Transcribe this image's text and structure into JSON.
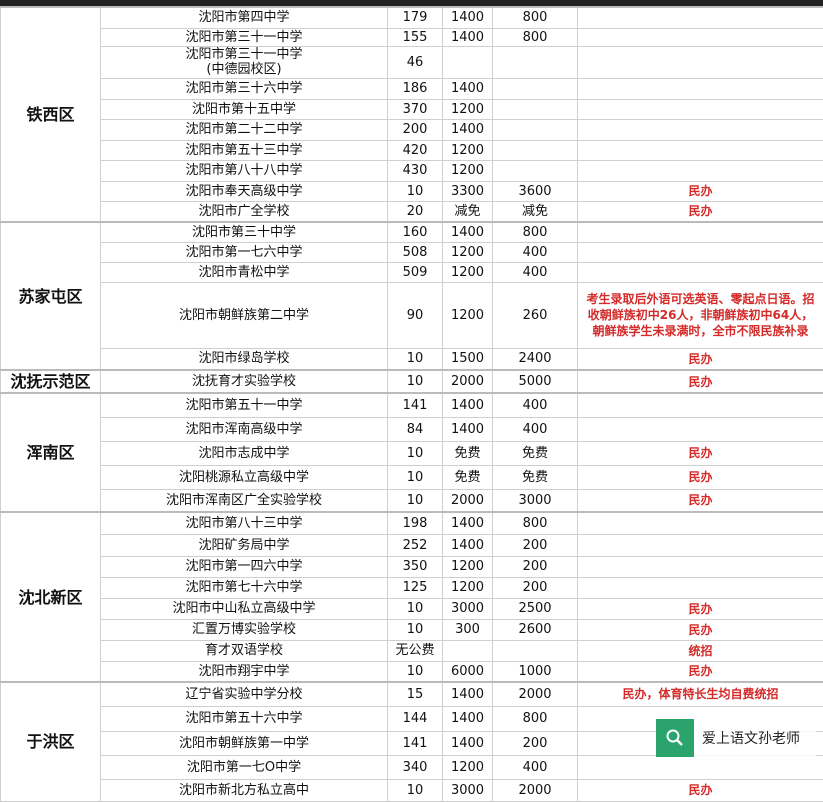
{
  "districts": [
    {
      "name": "铁西区",
      "rows": [
        [
          "沈阳市第四中学",
          "179",
          "1400",
          "800",
          ""
        ],
        [
          "沈阳市第三十一中学",
          "155",
          "1400",
          "800",
          ""
        ],
        [
          "沈阳市第三十一中学\n(中德园校区)",
          "46",
          "",
          "",
          ""
        ],
        [
          "沈阳市第三十六中学",
          "186",
          "1400",
          "",
          ""
        ],
        [
          "沈阳市第十五中学",
          "370",
          "1200",
          "",
          ""
        ],
        [
          "沈阳市第二十二中学",
          "200",
          "1400",
          "",
          ""
        ],
        [
          "沈阳市第五十三中学",
          "420",
          "1200",
          "",
          ""
        ],
        [
          "沈阳市第八十八中学",
          "430",
          "1200",
          "",
          ""
        ],
        [
          "沈阳市奉天高级中学",
          "10",
          "3300",
          "3600",
          "民办"
        ],
        [
          "沈阳市广全学校",
          "20",
          "减免",
          "减免",
          "民办"
        ]
      ]
    },
    {
      "name": "苏家屯区",
      "rows": [
        [
          "沈阳市第三十中学",
          "160",
          "1400",
          "800",
          ""
        ],
        [
          "沈阳市第一七六中学",
          "508",
          "1200",
          "400",
          ""
        ],
        [
          "沈阳市青松中学",
          "509",
          "1200",
          "400",
          ""
        ],
        [
          "沈阳市朝鲜族第二中学",
          "90",
          "1200",
          "260",
          "考生录取后外语可选英语、零起点日语。招收朝鲜族初中26人，非朝鲜族初中64人，朝鲜族学生未录满时，全市不限民族补录"
        ],
        [
          "沈阳市绿岛学校",
          "10",
          "1500",
          "2400",
          "民办"
        ]
      ]
    },
    {
      "name": "沈抚示范区",
      "rows": [
        [
          "沈抚育才实验学校",
          "10",
          "2000",
          "5000",
          "民办"
        ]
      ]
    },
    {
      "name": "浑南区",
      "rows": [
        [
          "沈阳市第五十一中学",
          "141",
          "1400",
          "400",
          ""
        ],
        [
          "沈阳市浑南高级中学",
          "84",
          "1400",
          "400",
          ""
        ],
        [
          "沈阳市志成中学",
          "10",
          "免费",
          "免费",
          "民办"
        ],
        [
          "沈阳桃源私立高级中学",
          "10",
          "免费",
          "免费",
          "民办"
        ],
        [
          "沈阳市浑南区广全实验学校",
          "10",
          "2000",
          "3000",
          "民办"
        ]
      ]
    },
    {
      "name": "沈北新区",
      "rows": [
        [
          "沈阳市第八十三中学",
          "198",
          "1400",
          "800",
          ""
        ],
        [
          "沈阳矿务局中学",
          "252",
          "1400",
          "200",
          ""
        ],
        [
          "沈阳市第一四六中学",
          "350",
          "1200",
          "200",
          ""
        ],
        [
          "沈阳市第七十六中学",
          "125",
          "1200",
          "200",
          ""
        ],
        [
          "沈阳市中山私立高级中学",
          "10",
          "3000",
          "2500",
          "民办"
        ],
        [
          "汇置万博实验学校",
          "10",
          "300",
          "2600",
          "民办"
        ],
        [
          "育才双语学校",
          "无公费",
          "",
          "",
          "统招"
        ],
        [
          "沈阳市翔宇中学",
          "10",
          "6000",
          "1000",
          "民办"
        ]
      ]
    },
    {
      "name": "于洪区",
      "rows": [
        [
          "辽宁省实验中学分校",
          "15",
          "1400",
          "2000",
          "民办，体育特长生均自费统招"
        ],
        [
          "沈阳市第五十六中学",
          "144",
          "1400",
          "800",
          ""
        ],
        [
          "沈阳市朝鲜族第一中学",
          "141",
          "1400",
          "200",
          ""
        ],
        [
          "沈阳市第一七O中学",
          "340",
          "1200",
          "400",
          ""
        ],
        [
          "沈阳市新北方私立高中",
          "10",
          "3000",
          "2000",
          "民办"
        ]
      ]
    }
  ],
  "watermark": {
    "icon": "search-icon",
    "text": "爱上语文孙老师",
    "color": "#2aa36c"
  },
  "colors": {
    "note": "#d42a2a"
  }
}
